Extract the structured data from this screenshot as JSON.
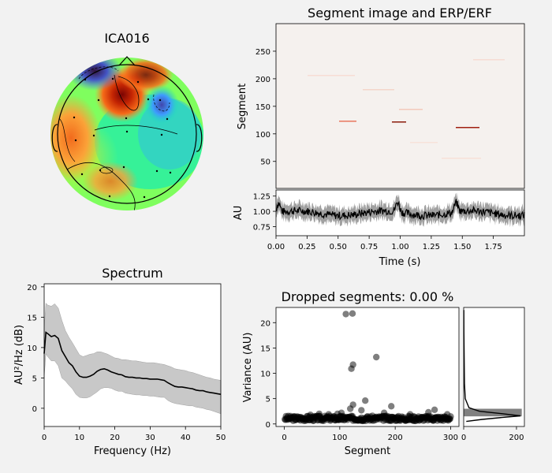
{
  "chart_data": [
    {
      "type": "topomap",
      "title": "ICA016",
      "colormap": "turbo",
      "features": [
        "frontal negative (dark purple)",
        "left-frontal positive (dark red)",
        "right-frontal negative (blue)",
        "left temporal positive (orange)"
      ]
    },
    {
      "type": "heatmap",
      "title": "Segment image and ERP/ERF",
      "ylabel": "Segment",
      "ylim": [
        1,
        300
      ],
      "yticks": [
        "50",
        "100",
        "150",
        "200",
        "250"
      ],
      "x_shared_with": "erp"
    },
    {
      "type": "line",
      "subtype": "erp",
      "xlabel": "Time (s)",
      "ylabel": "AU",
      "xlim": [
        0,
        2
      ],
      "ylim": [
        0.6,
        1.35
      ],
      "xticks": [
        "0.00",
        "0.25",
        "0.50",
        "0.75",
        "1.00",
        "1.25",
        "1.50",
        "1.75"
      ],
      "yticks": [
        "0.75",
        "1.00",
        "1.25"
      ],
      "mean_level": 0.97,
      "peaks": [
        {
          "x": 0.02,
          "y": 1.25
        },
        {
          "x": 0.98,
          "y": 1.25
        },
        {
          "x": 1.45,
          "y": 1.24
        }
      ]
    },
    {
      "type": "line",
      "subtype": "spectrum",
      "title": "Spectrum",
      "xlabel": "Frequency (Hz)",
      "ylabel": "AU²/Hz (dB)",
      "xlim": [
        0,
        50
      ],
      "ylim": [
        -3,
        20.5
      ],
      "xticks": [
        "0",
        "10",
        "20",
        "30",
        "40",
        "50"
      ],
      "yticks": [
        "0",
        "5",
        "10",
        "15",
        "20"
      ],
      "x": [
        0,
        0.5,
        1,
        2,
        3,
        4,
        5,
        6,
        7,
        8,
        9,
        10,
        11,
        12,
        13,
        14,
        15,
        16,
        17,
        18,
        19,
        20,
        21,
        22,
        23,
        24,
        25,
        26,
        27,
        28,
        29,
        30,
        31,
        32,
        33,
        34,
        35,
        36,
        37,
        38,
        39,
        40,
        41,
        42,
        43,
        44,
        45,
        46,
        47,
        48,
        49,
        50
      ],
      "mean": [
        9.0,
        12.5,
        12.3,
        11.8,
        12.0,
        11.5,
        9.5,
        8.5,
        7.5,
        7.0,
        6.0,
        5.3,
        5.1,
        5.1,
        5.3,
        5.6,
        6.1,
        6.4,
        6.5,
        6.3,
        6.0,
        5.8,
        5.6,
        5.5,
        5.2,
        5.1,
        5.1,
        5.0,
        5.0,
        4.9,
        4.9,
        4.8,
        4.8,
        4.8,
        4.7,
        4.6,
        4.2,
        3.9,
        3.6,
        3.5,
        3.5,
        3.4,
        3.3,
        3.2,
        3.0,
        2.9,
        2.9,
        2.7,
        2.6,
        2.5,
        2.4,
        2.3
      ],
      "upper": [
        13.0,
        17.3,
        17.0,
        16.8,
        17.2,
        16.5,
        14.5,
        12.8,
        11.7,
        10.8,
        9.8,
        8.8,
        8.5,
        8.7,
        8.9,
        9.0,
        9.3,
        9.3,
        9.1,
        8.9,
        8.6,
        8.3,
        8.2,
        8.0,
        8.0,
        7.9,
        7.8,
        7.8,
        7.7,
        7.6,
        7.5,
        7.5,
        7.5,
        7.4,
        7.3,
        7.2,
        7.0,
        6.8,
        6.5,
        6.4,
        6.3,
        6.2,
        6.0,
        5.9,
        5.7,
        5.5,
        5.3,
        5.1,
        5.0,
        4.8,
        4.7,
        4.6
      ],
      "lower": [
        5.0,
        9.0,
        8.5,
        7.8,
        7.8,
        7.0,
        5.0,
        4.5,
        3.8,
        3.2,
        2.3,
        1.8,
        1.7,
        1.7,
        1.9,
        2.3,
        2.7,
        3.2,
        3.4,
        3.4,
        3.3,
        3.0,
        2.8,
        2.8,
        2.5,
        2.4,
        2.3,
        2.2,
        2.2,
        2.1,
        2.1,
        2.0,
        2.0,
        1.9,
        1.8,
        1.8,
        1.3,
        1.0,
        0.8,
        0.7,
        0.6,
        0.5,
        0.4,
        0.4,
        0.2,
        0.1,
        0.0,
        -0.2,
        -0.3,
        -0.5,
        -0.7,
        -0.9
      ]
    },
    {
      "type": "scatter",
      "title": "Dropped segments: 0.00 %",
      "xlabel": "Segment",
      "ylabel": "Variance (AU)",
      "xlim": [
        -15,
        315
      ],
      "ylim": [
        -0.5,
        23
      ],
      "xticks": [
        "0",
        "100",
        "200",
        "300"
      ],
      "yticks": [
        "0",
        "5",
        "10",
        "15",
        "20"
      ],
      "baseline_range": [
        0.6,
        1.6
      ],
      "outliers": [
        {
          "x": 111,
          "y": 21.7
        },
        {
          "x": 123,
          "y": 21.8
        },
        {
          "x": 124,
          "y": 11.7
        },
        {
          "x": 121,
          "y": 10.9
        },
        {
          "x": 166,
          "y": 13.2
        },
        {
          "x": 146,
          "y": 4.6
        },
        {
          "x": 193,
          "y": 3.5
        },
        {
          "x": 124,
          "y": 3.8
        },
        {
          "x": 119,
          "y": 3.0
        },
        {
          "x": 139,
          "y": 2.7
        },
        {
          "x": 271,
          "y": 2.8
        },
        {
          "x": 260,
          "y": 2.3
        },
        {
          "x": 103,
          "y": 2.2
        },
        {
          "x": 180,
          "y": 2.2
        },
        {
          "x": 96,
          "y": 2.0
        },
        {
          "x": 63,
          "y": 2.0
        },
        {
          "x": 227,
          "y": 1.9
        },
        {
          "x": 294,
          "y": 1.9
        },
        {
          "x": 80,
          "y": 1.9
        },
        {
          "x": 47,
          "y": 1.8
        }
      ]
    },
    {
      "type": "histogram",
      "subtype": "variance-distribution",
      "xlim": [
        0,
        230
      ],
      "xticks": [
        "0",
        "200"
      ],
      "ylim": [
        -0.5,
        23
      ],
      "bar": {
        "y_from": 1.5,
        "y_to": 3.0,
        "count": 220
      },
      "density": [
        {
          "y": 0.5,
          "x": 10
        },
        {
          "y": 0.9,
          "x": 70
        },
        {
          "y": 1.3,
          "x": 150
        },
        {
          "y": 1.6,
          "x": 215
        },
        {
          "y": 2.0,
          "x": 150
        },
        {
          "y": 2.5,
          "x": 60
        },
        {
          "y": 3.2,
          "x": 20
        },
        {
          "y": 5.0,
          "x": 6
        },
        {
          "y": 8.0,
          "x": 3
        },
        {
          "y": 12.0,
          "x": 2
        },
        {
          "y": 18.0,
          "x": 1
        },
        {
          "y": 22.5,
          "x": 0.5
        }
      ]
    }
  ]
}
